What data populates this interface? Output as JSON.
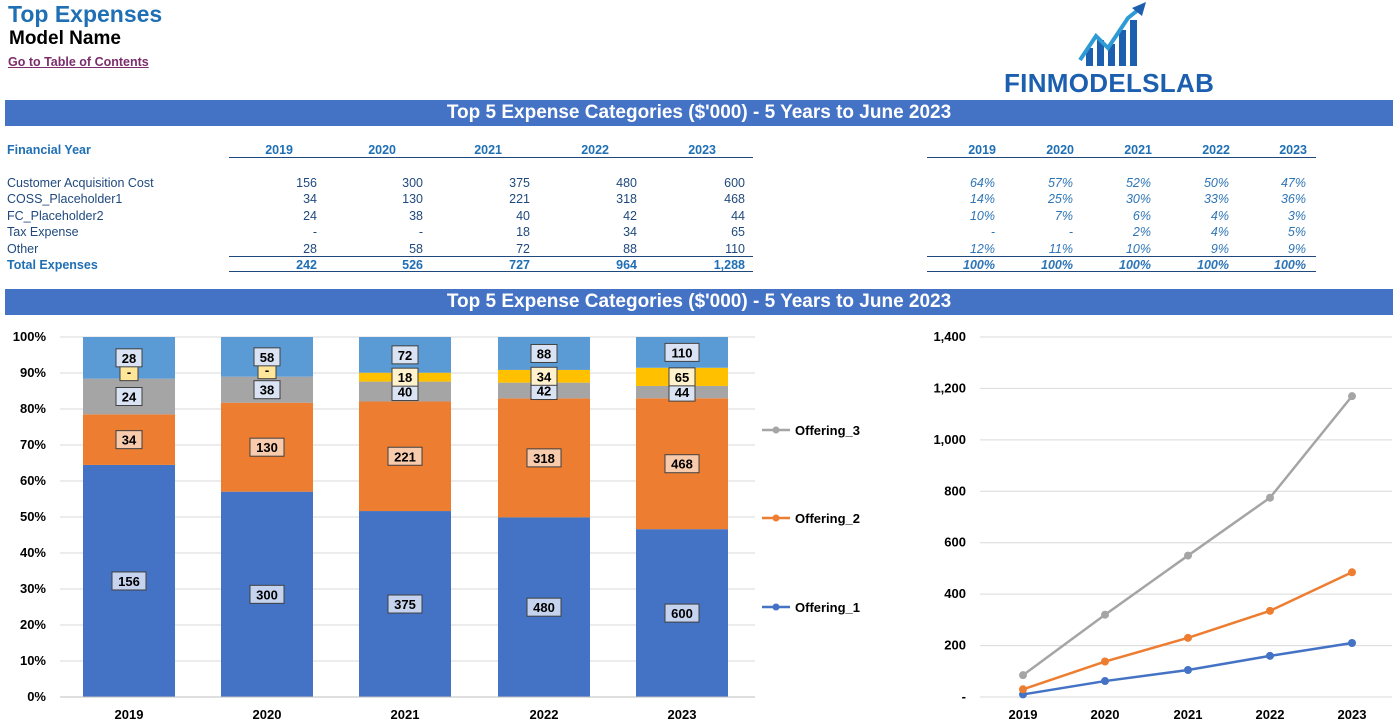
{
  "header": {
    "title": "Top Expenses",
    "model_name": "Model Name",
    "toc_link": "Go to Table of Contents",
    "logo_text": "FINMODELSLAB"
  },
  "table": {
    "banner": "Top 5 Expense Categories ($'000) - 5 Years to June 2023",
    "row_header": "Financial Year",
    "years": [
      "2019",
      "2020",
      "2021",
      "2022",
      "2023"
    ],
    "rows": [
      {
        "label": "Customer Acquisition Cost",
        "values": [
          "156",
          "300",
          "375",
          "480",
          "600"
        ],
        "pcts": [
          "64%",
          "57%",
          "52%",
          "50%",
          "47%"
        ]
      },
      {
        "label": "COSS_Placeholder1",
        "values": [
          "34",
          "130",
          "221",
          "318",
          "468"
        ],
        "pcts": [
          "14%",
          "25%",
          "30%",
          "33%",
          "36%"
        ]
      },
      {
        "label": "FC_Placeholder2",
        "values": [
          "24",
          "38",
          "40",
          "42",
          "44"
        ],
        "pcts": [
          "10%",
          "7%",
          "6%",
          "4%",
          "3%"
        ]
      },
      {
        "label": "Tax Expense",
        "values": [
          "-",
          "-",
          "18",
          "34",
          "65"
        ],
        "pcts": [
          "-",
          "-",
          "2%",
          "4%",
          "5%"
        ]
      },
      {
        "label": "Other",
        "values": [
          "28",
          "58",
          "72",
          "88",
          "110"
        ],
        "pcts": [
          "12%",
          "11%",
          "10%",
          "9%",
          "9%"
        ]
      }
    ],
    "total": {
      "label": "Total Expenses",
      "values": [
        "242",
        "526",
        "727",
        "964",
        "1,288"
      ],
      "pcts": [
        "100%",
        "100%",
        "100%",
        "100%",
        "100%"
      ]
    }
  },
  "chart_banner": "Top 5 Expense Categories ($'000) - 5 Years to June 2023",
  "colors": {
    "blue": "#4472c4",
    "orange": "#ed7d31",
    "gray": "#a5a5a5",
    "gold": "#ffc000",
    "lightblue": "#5b9bd5",
    "banner": "#4472c4"
  },
  "chart_data": [
    {
      "type": "bar",
      "stacked": "percent",
      "categories": [
        "2019",
        "2020",
        "2021",
        "2022",
        "2023"
      ],
      "series": [
        {
          "values": [
            156,
            300,
            375,
            480,
            600
          ],
          "labels": [
            "156",
            "300",
            "375",
            "480",
            "600"
          ],
          "color": "#4472c4"
        },
        {
          "values": [
            34,
            130,
            221,
            318,
            468
          ],
          "labels": [
            "34",
            "130",
            "221",
            "318",
            "468"
          ],
          "color": "#ed7d31"
        },
        {
          "values": [
            24,
            38,
            40,
            42,
            44
          ],
          "labels": [
            "24",
            "38",
            "40",
            "42",
            "44"
          ],
          "color": "#a5a5a5"
        },
        {
          "values": [
            0,
            0,
            18,
            34,
            65
          ],
          "labels": [
            "-",
            "-",
            "18",
            "34",
            "65"
          ],
          "color": "#ffc000"
        },
        {
          "values": [
            28,
            58,
            72,
            88,
            110
          ],
          "labels": [
            "28",
            "58",
            "72",
            "88",
            "110"
          ],
          "color": "#5b9bd5"
        }
      ],
      "yticks": [
        "0%",
        "10%",
        "20%",
        "30%",
        "40%",
        "50%",
        "60%",
        "70%",
        "80%",
        "90%",
        "100%"
      ],
      "ylim": [
        0,
        100
      ],
      "grid": true
    },
    {
      "type": "line",
      "legend_position": "left",
      "categories": [
        "2019",
        "2020",
        "2021",
        "2022",
        "2023"
      ],
      "series": [
        {
          "name": "Offering_1",
          "values": [
            10,
            62,
            105,
            160,
            210
          ],
          "color": "#4472c4"
        },
        {
          "name": "Offering_2",
          "values": [
            30,
            138,
            230,
            335,
            485
          ],
          "color": "#ed7d31"
        },
        {
          "name": "Offering_3",
          "values": [
            85,
            320,
            550,
            775,
            1170
          ],
          "color": "#a5a5a5"
        }
      ],
      "yticks": [
        "-",
        "200",
        "400",
        "600",
        "800",
        "1,000",
        "1,200",
        "1,400"
      ],
      "ylim": [
        0,
        1400
      ],
      "grid": true
    }
  ]
}
